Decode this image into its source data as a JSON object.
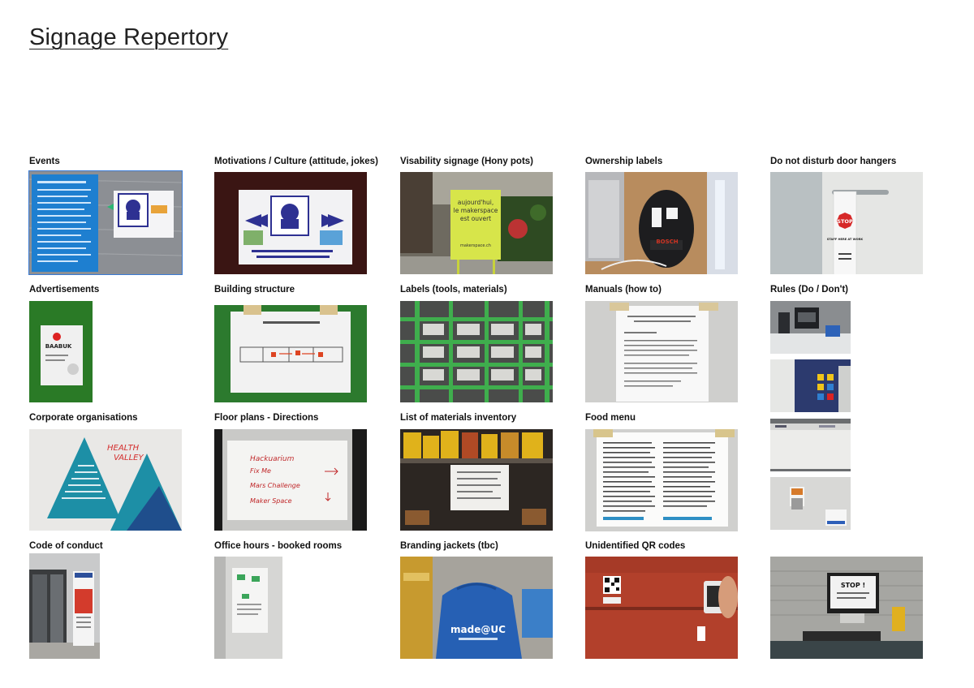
{
  "page": {
    "title": "Signage Repertory"
  },
  "captions": {
    "events": "Events",
    "motivations": "Motivations / Culture (attitude, jokes)",
    "visability": "Visability signage (Hony pots)",
    "ownership": "Ownership labels",
    "donotdisturb": "Do not disturb door hangers",
    "advertisements": "Advertisements",
    "building": "Building structure",
    "labels": "Labels (tools, materials)",
    "manuals": "Manuals (how to)",
    "rules": "Rules (Do / Don't)",
    "corporate": "Corporate organisations",
    "floorplans": "Floor plans - Directions",
    "inventory": "List of materials inventory",
    "food": "Food menu",
    "conduct": "Code of conduct",
    "office": "Office hours - booked rooms",
    "branding": "Branding jackets (tbc)",
    "qr": "Unidentified QR codes"
  },
  "photo_text": {
    "sign_line1": "aujourd'hui,",
    "sign_line2": "le makerspace",
    "sign_line3": "est ouvert",
    "sign_url": "makerspace.ch",
    "brand": "BOSCH",
    "stop": "STOP",
    "stop_note": "STAFF HERE AT WORK",
    "baabuk": "BAABUK",
    "health1": "HEALTH",
    "health2": "VALLEY",
    "hack1": "Hackuarium",
    "hack2": "Fix Me",
    "hack3": "Mars Challenge",
    "hack4": "Maker Space",
    "madeuc": "made@UC",
    "stop2": "STOP !"
  }
}
